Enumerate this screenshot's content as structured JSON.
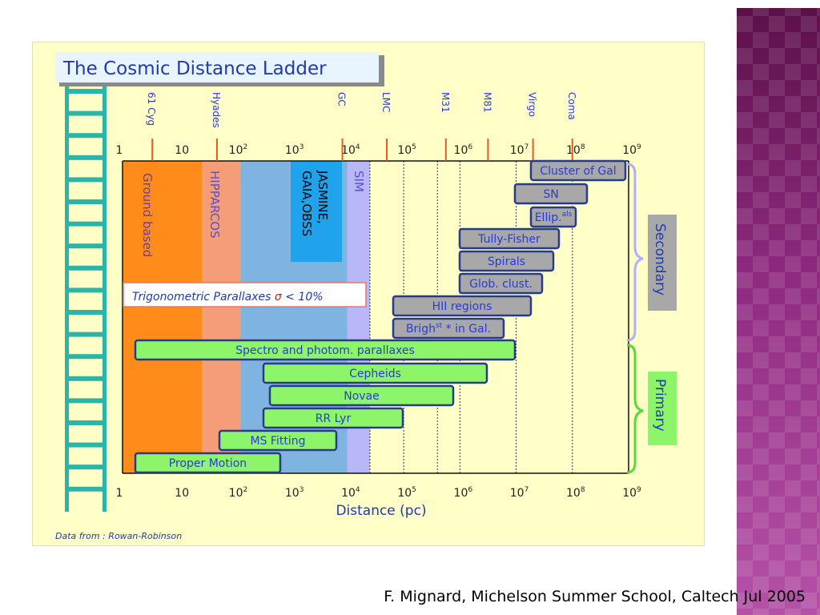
{
  "title": "The Cosmic  Distance  Ladder",
  "footer": "F. Mignard, Michelson Summer School, Caltech Jul 2005",
  "source_note": "Data from : Rowan-Robinson",
  "axis": {
    "label": "Distance (pc)",
    "ticks": [
      {
        "text": "1",
        "sup": ""
      },
      {
        "text": "10",
        "sup": ""
      },
      {
        "text": "10",
        "sup": "2"
      },
      {
        "text": "10",
        "sup": "3"
      },
      {
        "text": "10",
        "sup": "4"
      },
      {
        "text": "10",
        "sup": "5"
      },
      {
        "text": "10",
        "sup": "6"
      },
      {
        "text": "10",
        "sup": "7"
      },
      {
        "text": "10",
        "sup": "8"
      },
      {
        "text": "10",
        "sup": "9"
      }
    ]
  },
  "landmarks": [
    {
      "name": "61 Cyg",
      "log": 0.53
    },
    {
      "name": "Hyades",
      "log": 1.68
    },
    {
      "name": "GC",
      "log": 3.91
    },
    {
      "name": "LMC",
      "log": 4.7
    },
    {
      "name": "M31",
      "log": 5.75
    },
    {
      "name": "M81",
      "log": 6.5
    },
    {
      "name": "Virgo",
      "log": 7.3
    },
    {
      "name": "Coma",
      "log": 8.0
    }
  ],
  "regions": [
    {
      "label": "Ground based",
      "color": "#ff8c1a",
      "text_color": "#6a3e9a"
    },
    {
      "label": "HIPPARCOS",
      "color": "#f59c78",
      "text_color": "#5b4fcf"
    },
    {
      "label": "",
      "color": "#7fb4e0"
    },
    {
      "label": "JASMINE, GAIA,OBSS",
      "color": "#1fa3ec",
      "text_color": "#000000"
    },
    {
      "label": "SIM",
      "color": "#b8b8f8",
      "text_color": "#5b4fcf"
    }
  ],
  "parallax_box": {
    "text": "Trigonometric Parallaxes",
    "sigma": "σ",
    "rest": " < 10%"
  },
  "secondary": [
    {
      "label": "Cluster of Gal",
      "sup": ""
    },
    {
      "label": "SN",
      "sup": ""
    },
    {
      "label": "Ellip.",
      "sup": "als"
    },
    {
      "label": "Tully-Fisher",
      "sup": ""
    },
    {
      "label": "Spirals",
      "sup": ""
    },
    {
      "label": "Glob. clust.",
      "sup": ""
    },
    {
      "label": "HII regions",
      "sup": ""
    },
    {
      "label": "Brigh",
      "sup": "st",
      "after": " * in Gal."
    }
  ],
  "primary": [
    {
      "label": "Spectro and photom. parallaxes"
    },
    {
      "label": "Cepheids"
    },
    {
      "label": "Novae"
    },
    {
      "label": "RR Lyr"
    },
    {
      "label": "MS Fitting"
    },
    {
      "label": "Proper Motion"
    }
  ],
  "group_labels": {
    "secondary": "Secondary",
    "primary": "Primary"
  },
  "colors": {
    "slide_bg": "#ffffc8",
    "secondary_bar": "#a8a8a8",
    "primary_bar": "#8cf56a",
    "bar_border": "#2a3a8a",
    "bar_text": "#2a3ad8",
    "ladder": "#2bb5a8",
    "brace_secondary": "#b0b0ff",
    "brace_primary": "#5ad83a"
  }
}
